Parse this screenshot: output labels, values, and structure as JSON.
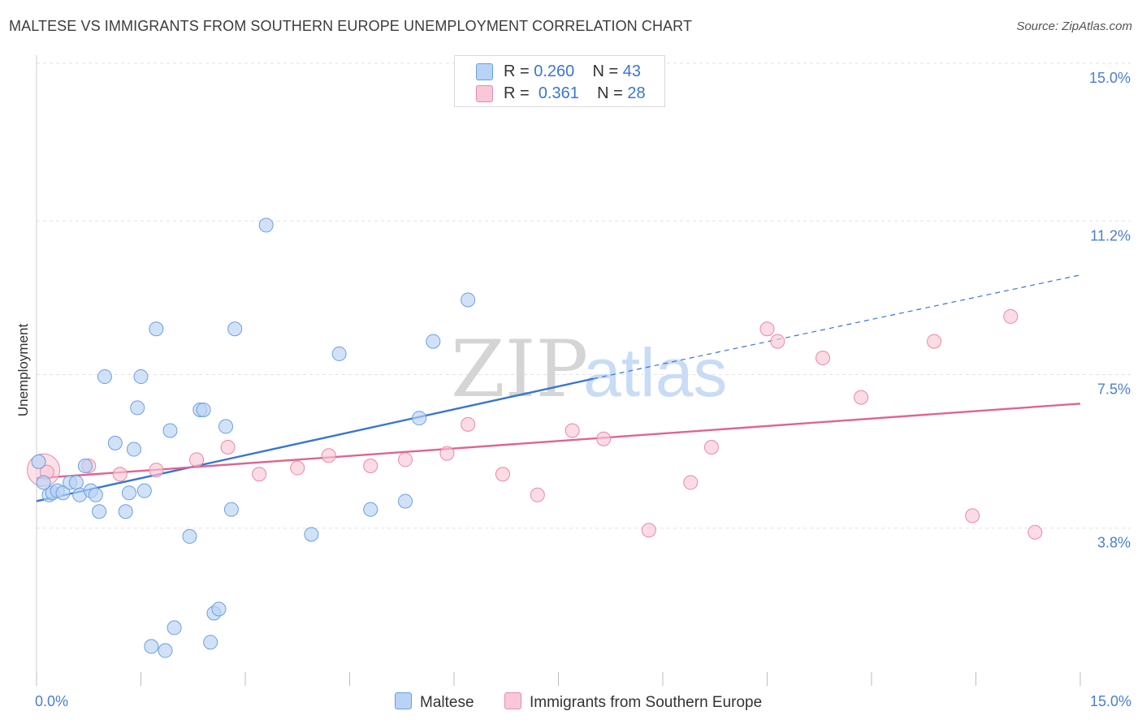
{
  "title": "MALTESE VS IMMIGRANTS FROM SOUTHERN EUROPE UNEMPLOYMENT CORRELATION CHART",
  "source": "Source: ZipAtlas.com",
  "watermark": {
    "zip": "ZIP",
    "atlas": "atlas"
  },
  "legend": {
    "rows": [
      {
        "r_label": "R = ",
        "r_value": "0.260",
        "n_label": "N = ",
        "n_value": "43"
      },
      {
        "r_label": "R = ",
        "r_value": "0.361",
        "n_label": "N = ",
        "n_value": "28"
      }
    ]
  },
  "bottom_legend": {
    "series1": "Maltese",
    "series2": "Immigrants from Southern Europe"
  },
  "colors": {
    "blue_fill": "#b8d3f5",
    "blue_stroke": "#6a9fe0",
    "blue_line": "#3a76cc",
    "pink_fill": "#f9c8d6",
    "pink_stroke": "#e68aa7",
    "pink_line": "#e0648f",
    "grid": "#e2e2e2",
    "axis_text": "#4a7fcf"
  },
  "chart_data": {
    "type": "scatter",
    "title": "MALTESE VS IMMIGRANTS FROM SOUTHERN EUROPE UNEMPLOYMENT CORRELATION CHART",
    "xlabel": "",
    "ylabel": "Unemployment",
    "xlim": [
      0,
      15
    ],
    "ylim": [
      0,
      15
    ],
    "x_tick_labels": [
      "0.0%",
      "15.0%"
    ],
    "y_ticks": [
      3.8,
      7.5,
      11.2,
      15.0
    ],
    "y_tick_labels": [
      "3.8%",
      "7.5%",
      "11.2%",
      "15.0%"
    ],
    "series": [
      {
        "name": "Maltese",
        "r": 0.26,
        "n": 43,
        "points": [
          [
            0.03,
            5.4
          ],
          [
            0.1,
            4.9
          ],
          [
            0.18,
            4.6
          ],
          [
            0.23,
            4.65
          ],
          [
            0.3,
            4.7
          ],
          [
            0.38,
            4.65
          ],
          [
            0.48,
            4.9
          ],
          [
            0.57,
            4.9
          ],
          [
            0.62,
            4.6
          ],
          [
            0.7,
            5.3
          ],
          [
            0.78,
            4.7
          ],
          [
            0.85,
            4.6
          ],
          [
            0.9,
            4.2
          ],
          [
            0.98,
            7.45
          ],
          [
            1.13,
            5.85
          ],
          [
            1.28,
            4.2
          ],
          [
            1.33,
            4.65
          ],
          [
            1.4,
            5.7
          ],
          [
            1.45,
            6.7
          ],
          [
            1.5,
            7.45
          ],
          [
            1.55,
            4.7
          ],
          [
            1.65,
            0.95
          ],
          [
            1.72,
            8.6
          ],
          [
            1.85,
            0.85
          ],
          [
            1.92,
            6.15
          ],
          [
            1.98,
            1.4
          ],
          [
            2.2,
            3.6
          ],
          [
            2.35,
            6.65
          ],
          [
            2.4,
            6.65
          ],
          [
            2.5,
            1.05
          ],
          [
            2.55,
            1.75
          ],
          [
            2.62,
            1.85
          ],
          [
            2.72,
            6.25
          ],
          [
            2.8,
            4.25
          ],
          [
            2.85,
            8.6
          ],
          [
            3.3,
            11.1
          ],
          [
            3.95,
            3.65
          ],
          [
            4.35,
            8.0
          ],
          [
            4.8,
            4.25
          ],
          [
            5.3,
            4.45
          ],
          [
            5.5,
            6.45
          ],
          [
            5.7,
            8.3
          ],
          [
            6.2,
            9.3
          ]
        ],
        "trend": {
          "x0": 0,
          "y0": 4.45,
          "x1": 8.0,
          "y1": 7.4,
          "dash_x1": 15,
          "dash_y1": 9.9
        }
      },
      {
        "name": "Immigrants from Southern Europe",
        "r": 0.361,
        "n": 28,
        "points": [
          [
            0.15,
            5.15
          ],
          [
            0.75,
            5.3
          ],
          [
            1.2,
            5.1
          ],
          [
            1.72,
            5.2
          ],
          [
            2.3,
            5.45
          ],
          [
            2.75,
            5.75
          ],
          [
            3.2,
            5.1
          ],
          [
            3.75,
            5.25
          ],
          [
            4.2,
            5.55
          ],
          [
            4.8,
            5.3
          ],
          [
            5.3,
            5.45
          ],
          [
            5.9,
            5.6
          ],
          [
            6.2,
            6.3
          ],
          [
            6.7,
            5.1
          ],
          [
            7.2,
            4.6
          ],
          [
            7.7,
            6.15
          ],
          [
            8.15,
            5.95
          ],
          [
            8.8,
            3.75
          ],
          [
            9.4,
            4.9
          ],
          [
            9.7,
            5.75
          ],
          [
            10.5,
            8.6
          ],
          [
            10.65,
            8.3
          ],
          [
            11.3,
            7.9
          ],
          [
            11.85,
            6.95
          ],
          [
            12.9,
            8.3
          ],
          [
            13.45,
            4.1
          ],
          [
            14.0,
            8.9
          ],
          [
            14.35,
            3.7
          ]
        ],
        "trend": {
          "x0": 0,
          "y0": 5.0,
          "x1": 15,
          "y1": 6.8
        }
      }
    ]
  }
}
